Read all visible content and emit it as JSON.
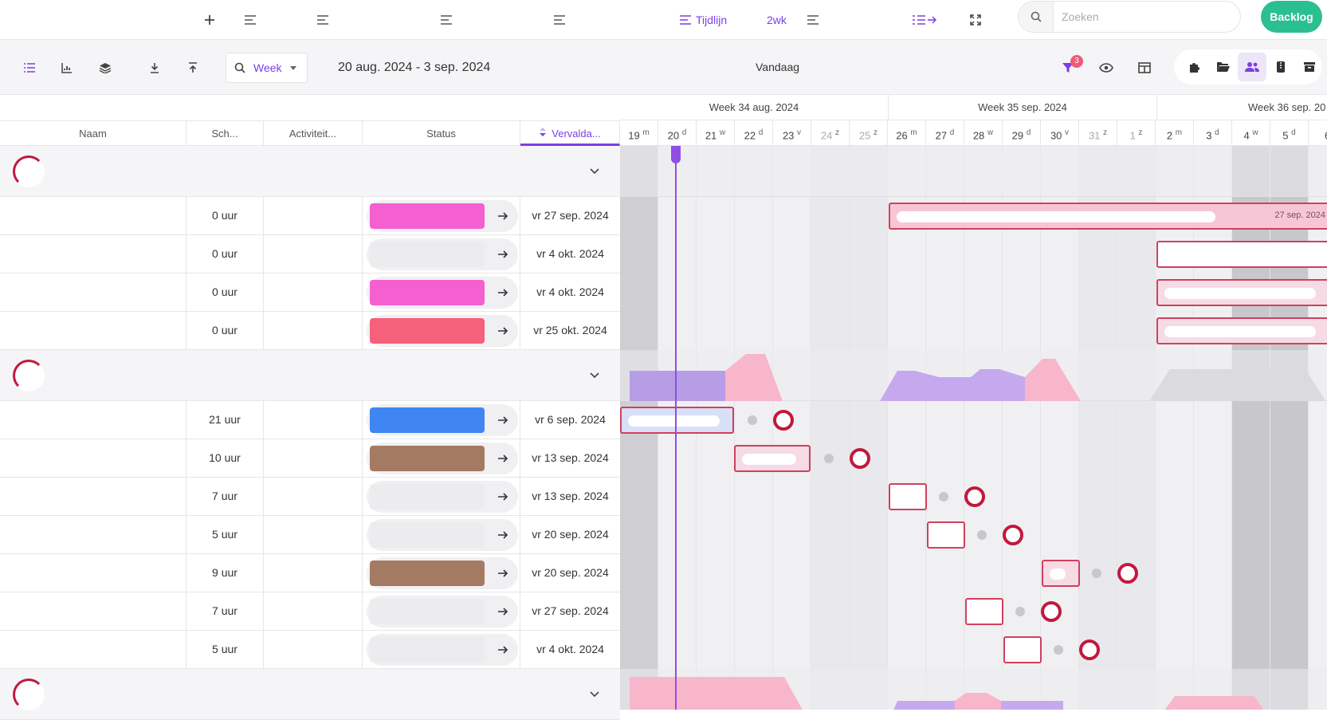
{
  "topbar": {
    "timeline_label": "Tijdlijn",
    "range_label": "2wk",
    "search_placeholder": "Zoeken",
    "backlog_label": "Backlog"
  },
  "toolbar": {
    "period_label": "Week",
    "date_range": "20 aug. 2024 - 3 sep. 2024",
    "today_label": "Vandaag",
    "filter_count": "3"
  },
  "columns": {
    "name": "Naam",
    "schedule": "Sch...",
    "activity": "Activiteit...",
    "status": "Status",
    "due": "Vervalda..."
  },
  "groups": [
    {
      "tasks": [
        {
          "hours": "0 uur",
          "due": "vr 27 sep. 2024",
          "color": "#f55fd0"
        },
        {
          "hours": "0 uur",
          "due": "vr 4 okt. 2024",
          "color": "#ececee"
        },
        {
          "hours": "0 uur",
          "due": "vr 4 okt. 2024",
          "color": "#f55fd0"
        },
        {
          "hours": "0 uur",
          "due": "vr 25 okt. 2024",
          "color": "#f5607a"
        }
      ]
    },
    {
      "tasks": [
        {
          "hours": "21 uur",
          "due": "vr 6 sep. 2024",
          "color": "#3f86f2"
        },
        {
          "hours": "10 uur",
          "due": "vr 13 sep. 2024",
          "color": "#a47a62"
        },
        {
          "hours": "7 uur",
          "due": "vr 13 sep. 2024",
          "color": "#ececee"
        },
        {
          "hours": "5 uur",
          "due": "vr 20 sep. 2024",
          "color": "#ececee"
        },
        {
          "hours": "9 uur",
          "due": "vr 20 sep. 2024",
          "color": "#a47a62"
        },
        {
          "hours": "7 uur",
          "due": "vr 27 sep. 2024",
          "color": "#ececee"
        },
        {
          "hours": "5 uur",
          "due": "vr 4 okt. 2024",
          "color": "#ececee"
        }
      ]
    }
  ],
  "timeline": {
    "weeks": [
      "Week 34 aug. 2024",
      "Week 35 sep. 2024",
      "Week 36 sep. 20"
    ],
    "days": [
      {
        "n": "19",
        "d": "m"
      },
      {
        "n": "20",
        "d": "d"
      },
      {
        "n": "21",
        "d": "w"
      },
      {
        "n": "22",
        "d": "d"
      },
      {
        "n": "23",
        "d": "v"
      },
      {
        "n": "24",
        "d": "z"
      },
      {
        "n": "25",
        "d": "z"
      },
      {
        "n": "26",
        "d": "m"
      },
      {
        "n": "27",
        "d": "d"
      },
      {
        "n": "28",
        "d": "w"
      },
      {
        "n": "29",
        "d": "d"
      },
      {
        "n": "30",
        "d": "v"
      },
      {
        "n": "31",
        "d": "z"
      },
      {
        "n": "1",
        "d": "z"
      },
      {
        "n": "2",
        "d": "m"
      },
      {
        "n": "3",
        "d": "d"
      },
      {
        "n": "4",
        "d": "w"
      },
      {
        "n": "5",
        "d": "d"
      },
      {
        "n": "6",
        "d": ""
      }
    ],
    "bar_label": "27 sep. 2024"
  },
  "colors": {
    "accent": "#7b3fe4",
    "backlog": "#2bbf8f",
    "today_line": "#8e4fe4",
    "bar_border": "#d0405c",
    "ring": "#c2183e"
  }
}
